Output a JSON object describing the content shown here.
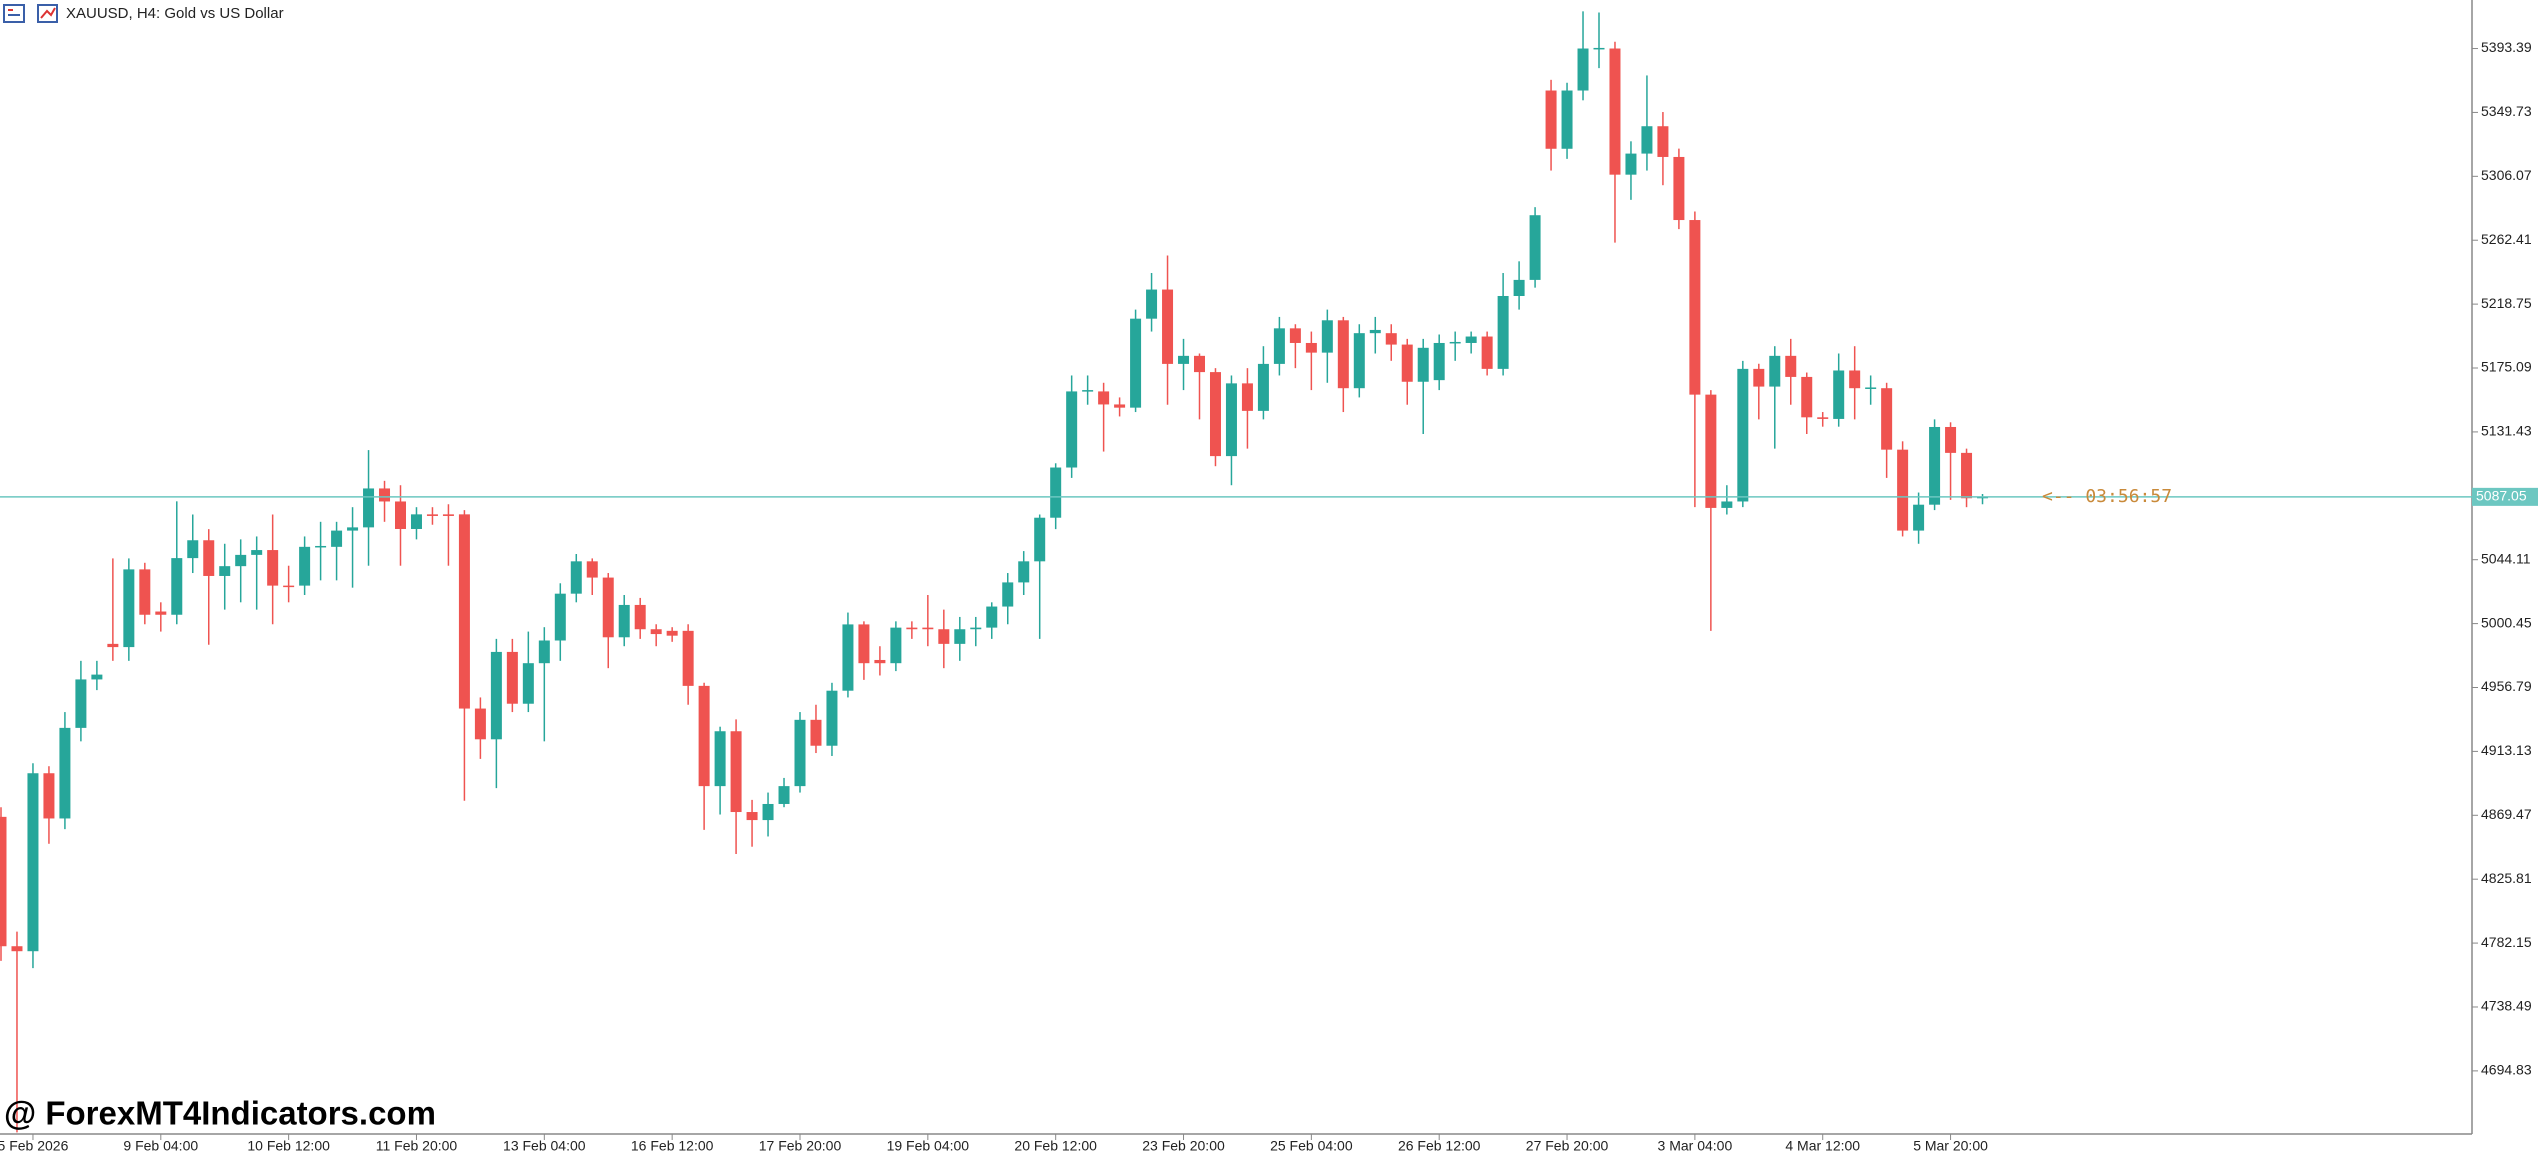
{
  "chart_data": {
    "type": "candlestick",
    "title": "XAUUSD, H4:  Gold vs US Dollar",
    "watermark": "@ ForexMT4Indicators.com",
    "up_color": "#26a69a",
    "down_color": "#ef5350",
    "price_line_color": "#6cc7c1",
    "current_price": {
      "value": 5087.05,
      "label": "5087.05"
    },
    "countdown": "<-- 03:56:57",
    "ylim": [
      4651.7,
      5426.55
    ],
    "yticks": [
      5393.39,
      5349.73,
      5306.07,
      5262.41,
      5218.75,
      5175.09,
      5131.43,
      5044.11,
      5000.45,
      4956.79,
      4913.13,
      4869.47,
      4825.81,
      4782.15,
      4738.49,
      4694.83
    ],
    "categories": [
      null,
      null,
      "5 Feb 2026",
      null,
      null,
      null,
      null,
      null,
      null,
      null,
      "9 Feb 04:00",
      null,
      null,
      null,
      null,
      null,
      null,
      null,
      "10 Feb 12:00",
      null,
      null,
      null,
      null,
      null,
      null,
      null,
      "11 Feb 20:00",
      null,
      null,
      null,
      null,
      null,
      null,
      null,
      "13 Feb 04:00",
      null,
      null,
      null,
      null,
      null,
      null,
      null,
      "16 Feb 12:00",
      null,
      null,
      null,
      null,
      null,
      null,
      null,
      "17 Feb 20:00",
      null,
      null,
      null,
      null,
      null,
      null,
      null,
      "19 Feb 04:00",
      null,
      null,
      null,
      null,
      null,
      null,
      null,
      "20 Feb 12:00",
      null,
      null,
      null,
      null,
      null,
      null,
      null,
      "23 Feb 20:00",
      null,
      null,
      null,
      null,
      null,
      null,
      null,
      "25 Feb 04:00",
      null,
      null,
      null,
      null,
      null,
      null,
      null,
      "26 Feb 12:00",
      null,
      null,
      null,
      null,
      null,
      null,
      null,
      "27 Feb 20:00",
      null,
      null,
      null,
      null,
      null,
      null,
      null,
      "3 Mar 04:00",
      null,
      null,
      null,
      null,
      null,
      null,
      null,
      "4 Mar 12:00",
      null,
      null,
      null,
      null,
      null,
      null,
      null,
      "5 Mar 20:00",
      null,
      null
    ],
    "ohlc": [
      [
        4868.4,
        4875,
        4770,
        4780.0
      ],
      [
        4780.0,
        4790,
        4652.8,
        4776.6
      ],
      [
        4776.6,
        4905,
        4765,
        4898.2
      ],
      [
        4898.2,
        4903,
        4850,
        4867.3
      ],
      [
        4867.3,
        4940,
        4860,
        4929.2
      ],
      [
        4929.2,
        4975,
        4920,
        4962.3
      ],
      [
        4962.3,
        4975,
        4955,
        4965.6
      ],
      [
        4986.6,
        5045,
        4975,
        4984.4
      ],
      [
        4984.4,
        5045,
        4975,
        5037.5
      ],
      [
        5037.5,
        5042,
        5000,
        5006.5
      ],
      [
        5008.7,
        5015,
        4995,
        5006.5
      ],
      [
        5006.5,
        5084,
        5000,
        5045.2
      ],
      [
        5045.2,
        5075,
        5035,
        5057.4
      ],
      [
        5057.4,
        5065,
        4986,
        5033.0
      ],
      [
        5033.0,
        5055,
        5010,
        5039.7
      ],
      [
        5039.7,
        5058,
        5015,
        5047.4
      ],
      [
        5047.4,
        5060,
        5010,
        5050.7
      ],
      [
        5050.7,
        5075,
        5000,
        5026.4
      ],
      [
        5026.4,
        5040,
        5015,
        5026.0
      ],
      [
        5026.4,
        5060,
        5020,
        5052.9
      ],
      [
        5052.9,
        5070,
        5030,
        5053.5
      ],
      [
        5052.9,
        5070,
        5030,
        5064.0
      ],
      [
        5064.0,
        5080,
        5025,
        5066.2
      ],
      [
        5066.2,
        5119,
        5040,
        5092.8
      ],
      [
        5092.8,
        5098,
        5070,
        5083.9
      ],
      [
        5083.9,
        5095,
        5040,
        5065.1
      ],
      [
        5065.1,
        5080,
        5058,
        5075.1
      ],
      [
        5075.1,
        5080,
        5068,
        5074.0
      ],
      [
        5075.1,
        5082,
        5040,
        5074.0
      ],
      [
        5075.1,
        5078,
        4879.4,
        4942.4
      ],
      [
        4942.4,
        4950,
        4908,
        4921.4
      ],
      [
        4921.4,
        4990,
        4888,
        4981.1
      ],
      [
        4981.1,
        4990,
        4940,
        4945.7
      ],
      [
        4945.7,
        4995,
        4940,
        4973.4
      ],
      [
        4973.4,
        4998,
        4920,
        4988.9
      ],
      [
        4988.9,
        5028,
        4975,
        5020.9
      ],
      [
        5020.9,
        5048,
        5015,
        5043.0
      ],
      [
        5043.0,
        5045,
        5020,
        5031.9
      ],
      [
        5031.9,
        5035,
        4970,
        4991.1
      ],
      [
        4991.1,
        5020,
        4985,
        5013.2
      ],
      [
        5013.2,
        5018,
        4990,
        4996.6
      ],
      [
        4996.6,
        5000,
        4985,
        4993.3
      ],
      [
        4995.5,
        4998,
        4988,
        4992.2
      ],
      [
        4995.5,
        5000,
        4945,
        4957.9
      ],
      [
        4957.9,
        4960,
        4859.5,
        4889.4
      ],
      [
        4889.4,
        4930,
        4870,
        4926.9
      ],
      [
        4926.9,
        4935,
        4843,
        4871.7
      ],
      [
        4871.7,
        4880,
        4848,
        4866.2
      ],
      [
        4866.2,
        4885,
        4855,
        4877.2
      ],
      [
        4877.2,
        4895,
        4875,
        4889.4
      ],
      [
        4889.4,
        4940,
        4885,
        4934.7
      ],
      [
        4934.7,
        4945,
        4912,
        4917.0
      ],
      [
        4917.0,
        4960,
        4910,
        4954.6
      ],
      [
        4954.6,
        5008,
        4950,
        4999.9
      ],
      [
        4999.9,
        5002,
        4962,
        4973.4
      ],
      [
        4975.6,
        4985,
        4965,
        4973.4
      ],
      [
        4973.4,
        5002,
        4968,
        4997.7
      ],
      [
        4997.7,
        5002,
        4990,
        4996.6
      ],
      [
        4997.7,
        5020,
        4985,
        4996.6
      ],
      [
        4996.6,
        5010,
        4970,
        4986.6
      ],
      [
        4986.6,
        5005,
        4975,
        4996.6
      ],
      [
        4996.6,
        5005,
        4985,
        4997.7
      ],
      [
        4997.7,
        5015,
        4990,
        5012.1
      ],
      [
        5012.1,
        5035,
        5000,
        5028.6
      ],
      [
        5028.6,
        5050,
        5020,
        5043.0
      ],
      [
        5043.0,
        5075,
        4990,
        5072.8
      ],
      [
        5072.8,
        5110,
        5065,
        5107.1
      ],
      [
        5107.1,
        5170,
        5100,
        5159.1
      ],
      [
        5159.1,
        5170,
        5150,
        5160.0
      ],
      [
        5159.1,
        5165,
        5118,
        5150.2
      ],
      [
        5150.2,
        5155,
        5142,
        5148.0
      ],
      [
        5148.0,
        5215,
        5145,
        5208.8
      ],
      [
        5208.8,
        5240,
        5200,
        5228.7
      ],
      [
        5228.7,
        5252,
        5150,
        5177.9
      ],
      [
        5177.9,
        5195,
        5160,
        5183.4
      ],
      [
        5183.4,
        5185,
        5140,
        5172.3
      ],
      [
        5172.3,
        5175,
        5108,
        5114.9
      ],
      [
        5114.9,
        5170,
        5095,
        5164.6
      ],
      [
        5164.6,
        5175,
        5120,
        5145.8
      ],
      [
        5145.8,
        5190,
        5140,
        5177.9
      ],
      [
        5177.9,
        5210,
        5170,
        5202.2
      ],
      [
        5202.2,
        5205,
        5175,
        5192.2
      ],
      [
        5192.2,
        5200,
        5160,
        5185.6
      ],
      [
        5185.6,
        5215,
        5165,
        5207.7
      ],
      [
        5207.7,
        5210,
        5145,
        5161.3
      ],
      [
        5161.3,
        5205,
        5155,
        5198.9
      ],
      [
        5198.9,
        5210,
        5185,
        5201.1
      ],
      [
        5198.9,
        5205,
        5180,
        5191.1
      ],
      [
        5191.1,
        5195,
        5150,
        5165.7
      ],
      [
        5165.7,
        5195,
        5130,
        5188.9
      ],
      [
        5166.8,
        5198,
        5160,
        5192.2
      ],
      [
        5192.2,
        5200,
        5180,
        5192.9
      ],
      [
        5192.2,
        5200,
        5185,
        5196.6
      ],
      [
        5196.6,
        5200,
        5170,
        5174.5
      ],
      [
        5174.5,
        5240,
        5170,
        5224.3
      ],
      [
        5224.3,
        5248,
        5215,
        5235.3
      ],
      [
        5235.3,
        5285,
        5230,
        5279.5
      ],
      [
        5364.7,
        5372,
        5310,
        5324.9
      ],
      [
        5324.9,
        5370,
        5318,
        5364.7
      ],
      [
        5364.7,
        5418.8,
        5358,
        5393.4
      ],
      [
        5393.4,
        5418,
        5380,
        5393.8
      ],
      [
        5393.4,
        5398,
        5260.8,
        5307.2
      ],
      [
        5307.2,
        5330,
        5290,
        5321.6
      ],
      [
        5321.6,
        5375,
        5310,
        5340.3
      ],
      [
        5340.3,
        5350,
        5300,
        5319.3
      ],
      [
        5319.3,
        5325,
        5270,
        5276.2
      ],
      [
        5276.2,
        5282,
        5080,
        5156.9
      ],
      [
        5156.9,
        5160,
        4995.5,
        5079.5
      ],
      [
        5079.5,
        5095,
        5075,
        5083.9
      ],
      [
        5083.9,
        5180,
        5080,
        5174.5
      ],
      [
        5174.5,
        5178,
        5140,
        5162.4
      ],
      [
        5162.4,
        5190,
        5120,
        5183.4
      ],
      [
        5183.4,
        5195,
        5150,
        5169.0
      ],
      [
        5169.0,
        5172,
        5130,
        5141.4
      ],
      [
        5141.4,
        5145,
        5135,
        5140.3
      ],
      [
        5140.3,
        5185,
        5135,
        5173.4
      ],
      [
        5173.4,
        5190,
        5140,
        5161.3
      ],
      [
        5161.3,
        5170,
        5150,
        5161.8
      ],
      [
        5161.3,
        5165,
        5100,
        5119.3
      ],
      [
        5119.3,
        5125,
        5060,
        5064.0
      ],
      [
        5064.0,
        5090,
        5055,
        5081.7
      ],
      [
        5081.7,
        5140,
        5078,
        5134.8
      ],
      [
        5134.8,
        5138,
        5085,
        5117.1
      ],
      [
        5117.1,
        5120,
        5080,
        5086.1
      ],
      [
        5086.1,
        5089,
        5082,
        5087.1
      ]
    ]
  }
}
